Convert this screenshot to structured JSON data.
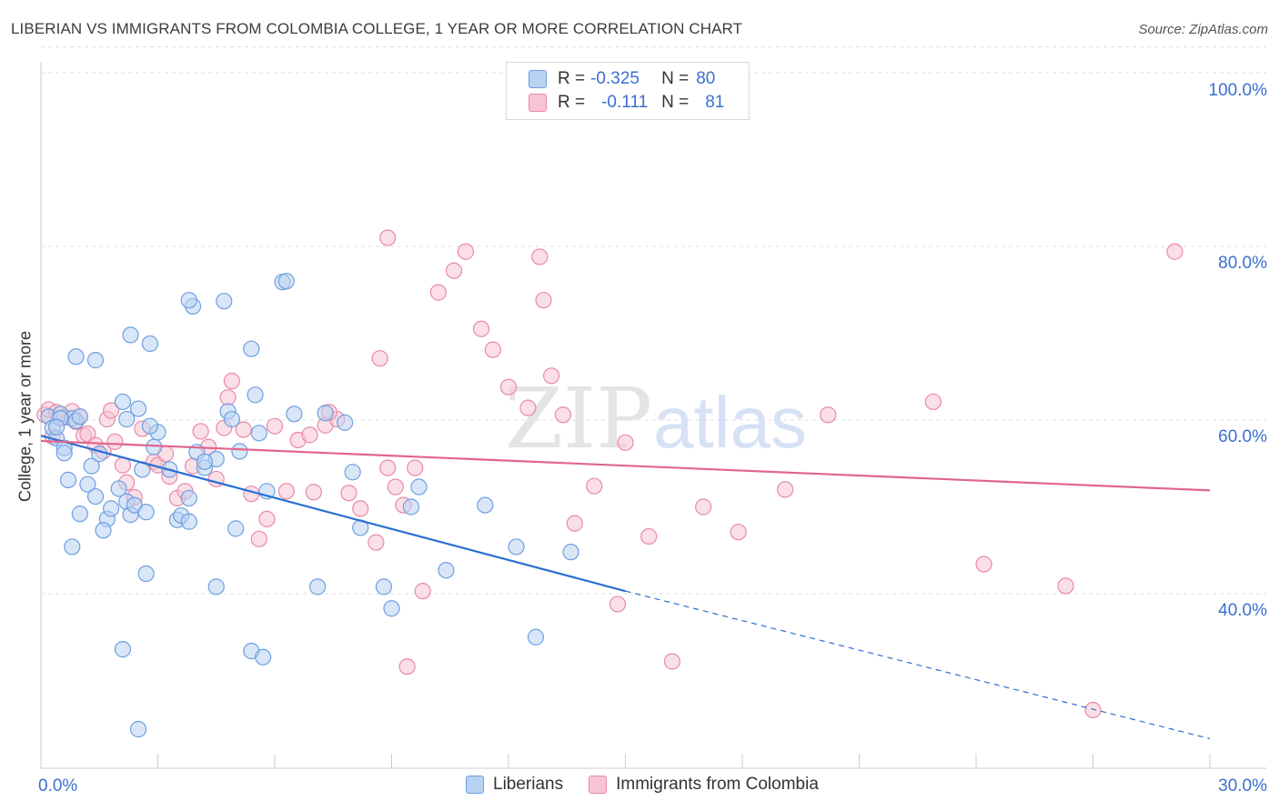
{
  "header": {
    "title": "LIBERIAN VS IMMIGRANTS FROM COLOMBIA COLLEGE, 1 YEAR OR MORE CORRELATION CHART",
    "source": "Source: ZipAtlas.com"
  },
  "watermark": {
    "zip": "ZIP",
    "atlas": "atlas"
  },
  "legend_top": {
    "row1": {
      "r_label": "R = ",
      "r_value": "-0.325",
      "n_label": "N = ",
      "n_value": "80"
    },
    "row2": {
      "r_label": "R = ",
      "r_value": "-0.111",
      "n_label": "N = ",
      "n_value": "81"
    }
  },
  "legend_bottom": {
    "series1": "Liberians",
    "series2": "Immigrants from Colombia"
  },
  "colors": {
    "blue_fill": "#b9d1f3",
    "blue_stroke": "#6e9fe0",
    "blue_line": "#2a6fd2",
    "pink_fill": "#f7c4d3",
    "pink_stroke": "#e88aa7",
    "pink_line": "#e0658d",
    "tick_label": "#3b6fd0",
    "grid": "#dcdcdc"
  },
  "chart_data": {
    "type": "scatter",
    "title": "LIBERIAN VS IMMIGRANTS FROM COLOMBIA COLLEGE, 1 YEAR OR MORE CORRELATION CHART",
    "xlabel": "",
    "ylabel": "College, 1 year or more",
    "xlim": [
      0,
      30
    ],
    "ylim": [
      20,
      103
    ],
    "x_tick_labels": [
      "0.0%",
      "30.0%"
    ],
    "y_ticks": [
      40,
      60,
      80,
      100
    ],
    "y_tick_labels": [
      "40.0%",
      "60.0%",
      "80.0%",
      "100.0%"
    ],
    "grid": "horizontal dashed",
    "legend_position": "top-center",
    "series": [
      {
        "name": "Liberians",
        "R": -0.325,
        "N": 80,
        "trend": {
          "x0": 0,
          "y0": 58.2,
          "x1": 15,
          "y1": 40.3,
          "dashed_to_x": 30,
          "dashed_to_y": 23.3
        },
        "points": [
          [
            0.2,
            60.4
          ],
          [
            0.3,
            59.1
          ],
          [
            0.4,
            57.9
          ],
          [
            0.5,
            60.7
          ],
          [
            0.6,
            56.8
          ],
          [
            0.7,
            53.1
          ],
          [
            0.8,
            60.2
          ],
          [
            0.5,
            60.2
          ],
          [
            0.9,
            59.9
          ],
          [
            1.0,
            60.4
          ],
          [
            0.4,
            59.2
          ],
          [
            0.6,
            56.2
          ],
          [
            1.2,
            52.6
          ],
          [
            1.3,
            54.7
          ],
          [
            1.5,
            56.1
          ],
          [
            1.4,
            51.2
          ],
          [
            1.7,
            48.6
          ],
          [
            1.8,
            49.8
          ],
          [
            2.0,
            52.1
          ],
          [
            2.2,
            50.6
          ],
          [
            1.0,
            49.2
          ],
          [
            0.8,
            45.4
          ],
          [
            1.6,
            47.3
          ],
          [
            2.3,
            49.1
          ],
          [
            2.4,
            50.2
          ],
          [
            2.6,
            54.3
          ],
          [
            2.9,
            56.9
          ],
          [
            2.5,
            61.3
          ],
          [
            2.8,
            68.8
          ],
          [
            2.1,
            62.1
          ],
          [
            1.4,
            66.9
          ],
          [
            0.9,
            67.3
          ],
          [
            2.2,
            60.1
          ],
          [
            3.0,
            58.6
          ],
          [
            3.3,
            54.3
          ],
          [
            3.5,
            48.5
          ],
          [
            2.7,
            49.4
          ],
          [
            3.6,
            49.0
          ],
          [
            3.8,
            51.0
          ],
          [
            4.2,
            54.5
          ],
          [
            4.0,
            56.3
          ],
          [
            4.5,
            55.5
          ],
          [
            5.1,
            56.4
          ],
          [
            5.5,
            62.9
          ],
          [
            4.8,
            61.0
          ],
          [
            3.9,
            73.1
          ],
          [
            2.3,
            69.8
          ],
          [
            3.8,
            73.8
          ],
          [
            4.7,
            73.7
          ],
          [
            5.4,
            68.2
          ],
          [
            4.9,
            60.1
          ],
          [
            5.0,
            47.5
          ],
          [
            4.2,
            55.2
          ],
          [
            3.8,
            48.3
          ],
          [
            2.8,
            59.3
          ],
          [
            6.5,
            60.7
          ],
          [
            5.6,
            58.5
          ],
          [
            5.8,
            51.8
          ],
          [
            6.2,
            75.9
          ],
          [
            6.3,
            76.0
          ],
          [
            7.3,
            60.8
          ],
          [
            8.0,
            54.0
          ],
          [
            8.2,
            47.6
          ],
          [
            7.1,
            40.8
          ],
          [
            4.5,
            40.8
          ],
          [
            8.8,
            40.8
          ],
          [
            9.0,
            38.3
          ],
          [
            9.5,
            50.0
          ],
          [
            9.7,
            52.3
          ],
          [
            10.4,
            42.7
          ],
          [
            2.7,
            42.3
          ],
          [
            2.1,
            33.6
          ],
          [
            5.4,
            33.4
          ],
          [
            5.7,
            32.7
          ],
          [
            2.5,
            24.4
          ],
          [
            11.4,
            50.2
          ],
          [
            12.2,
            45.4
          ],
          [
            12.7,
            35.0
          ],
          [
            13.6,
            44.8
          ],
          [
            7.8,
            59.7
          ]
        ]
      },
      {
        "name": "Immigrants from Colombia",
        "R": -0.111,
        "N": 81,
        "trend": {
          "x0": 0,
          "y0": 57.6,
          "x1": 30,
          "y1": 51.9
        },
        "points": [
          [
            0.1,
            60.6
          ],
          [
            0.2,
            61.2
          ],
          [
            0.4,
            60.9
          ],
          [
            0.6,
            60.3
          ],
          [
            0.8,
            61.0
          ],
          [
            1.0,
            60.4
          ],
          [
            0.9,
            59.8
          ],
          [
            0.3,
            58.1
          ],
          [
            1.1,
            58.2
          ],
          [
            1.2,
            58.4
          ],
          [
            1.4,
            57.1
          ],
          [
            1.6,
            56.4
          ],
          [
            1.7,
            60.1
          ],
          [
            1.8,
            61.1
          ],
          [
            1.9,
            57.5
          ],
          [
            2.1,
            54.8
          ],
          [
            2.2,
            52.8
          ],
          [
            2.4,
            51.1
          ],
          [
            2.6,
            59.0
          ],
          [
            2.9,
            55.2
          ],
          [
            3.0,
            54.8
          ],
          [
            3.2,
            56.1
          ],
          [
            3.3,
            53.5
          ],
          [
            3.5,
            51.0
          ],
          [
            3.7,
            51.8
          ],
          [
            3.9,
            54.7
          ],
          [
            4.1,
            58.7
          ],
          [
            4.3,
            56.9
          ],
          [
            4.5,
            53.2
          ],
          [
            4.7,
            59.1
          ],
          [
            4.8,
            62.6
          ],
          [
            4.9,
            64.5
          ],
          [
            5.2,
            58.9
          ],
          [
            5.4,
            51.5
          ],
          [
            5.6,
            46.3
          ],
          [
            5.8,
            48.6
          ],
          [
            6.0,
            59.3
          ],
          [
            6.3,
            51.8
          ],
          [
            6.6,
            57.7
          ],
          [
            6.9,
            58.3
          ],
          [
            7.0,
            51.7
          ],
          [
            7.3,
            59.4
          ],
          [
            7.6,
            60.1
          ],
          [
            7.9,
            51.6
          ],
          [
            8.2,
            49.8
          ],
          [
            8.6,
            45.9
          ],
          [
            8.9,
            54.5
          ],
          [
            9.1,
            52.3
          ],
          [
            9.3,
            50.2
          ],
          [
            9.6,
            54.5
          ],
          [
            7.4,
            60.9
          ],
          [
            8.7,
            67.1
          ],
          [
            8.9,
            81.0
          ],
          [
            9.4,
            31.6
          ],
          [
            9.8,
            40.3
          ],
          [
            10.2,
            74.7
          ],
          [
            10.6,
            77.2
          ],
          [
            10.9,
            79.4
          ],
          [
            11.3,
            70.5
          ],
          [
            11.6,
            68.1
          ],
          [
            12.0,
            63.8
          ],
          [
            12.5,
            61.4
          ],
          [
            12.9,
            73.8
          ],
          [
            13.1,
            65.1
          ],
          [
            13.4,
            60.6
          ],
          [
            13.7,
            48.1
          ],
          [
            14.2,
            52.4
          ],
          [
            14.8,
            38.8
          ],
          [
            12.8,
            78.8
          ],
          [
            15.0,
            57.4
          ],
          [
            15.6,
            46.6
          ],
          [
            16.2,
            32.2
          ],
          [
            17.0,
            50.0
          ],
          [
            19.1,
            52.0
          ],
          [
            20.2,
            60.6
          ],
          [
            17.9,
            47.1
          ],
          [
            22.9,
            62.1
          ],
          [
            24.2,
            43.4
          ],
          [
            26.3,
            40.9
          ],
          [
            27.0,
            26.6
          ],
          [
            29.1,
            79.4
          ]
        ]
      }
    ]
  }
}
